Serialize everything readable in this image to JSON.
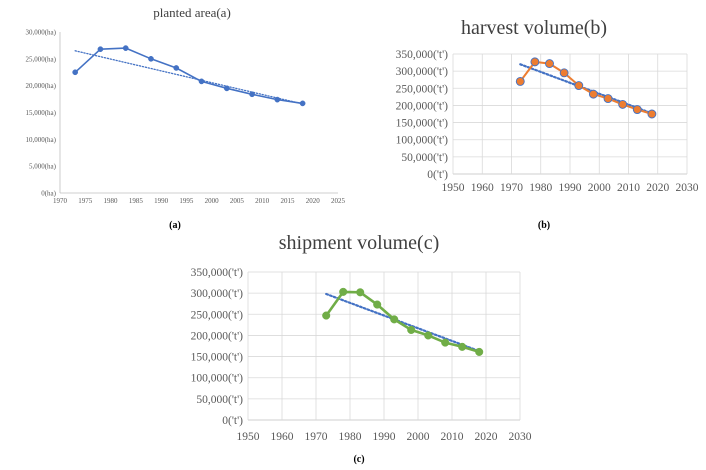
{
  "chart_data": [
    {
      "type": "line",
      "panel_label": "(a)",
      "title": "planted area(a)",
      "x": [
        1973,
        1978,
        1983,
        1988,
        1993,
        1998,
        2003,
        2008,
        2013,
        2018
      ],
      "series": [
        {
          "values": [
            22500,
            26800,
            27000,
            25000,
            23300,
            20800,
            19500,
            18400,
            17400,
            16700
          ],
          "color": "#4472C4",
          "marker": "circle-small"
        }
      ],
      "trendline": {
        "style": "dotted",
        "color": "#4472C4",
        "from": [
          1973,
          26500
        ],
        "to": [
          2018,
          16600
        ]
      },
      "xlim": [
        1970,
        2025
      ],
      "ylim": [
        0,
        30000
      ],
      "xticks": [
        "1970",
        "1975",
        "1980",
        "1985",
        "1990",
        "1995",
        "2000",
        "2005",
        "2010",
        "2015",
        "2020",
        "2025"
      ],
      "yticks": [
        "0(ha)",
        "5,000(ha)",
        "10,000(ha)",
        "15,000(ha)",
        "20,000(ha)",
        "25,000(ha)",
        "30,000(ha)"
      ],
      "grid": false
    },
    {
      "type": "line",
      "panel_label": "(b)",
      "title": "harvest volume(b)",
      "x": [
        1973,
        1978,
        1983,
        1988,
        1993,
        1998,
        2003,
        2008,
        2013,
        2018
      ],
      "series": [
        {
          "values": [
            270000,
            327000,
            322000,
            295000,
            258000,
            233000,
            220000,
            203000,
            188000,
            175000
          ],
          "color": "#ED7D31",
          "marker_fill": "#ED7D31",
          "marker_edge": "#4472C4"
        }
      ],
      "trendline": {
        "style": "dotted",
        "color": "#4472C4",
        "from": [
          1973,
          320000
        ],
        "to": [
          2018,
          177000
        ]
      },
      "xlim": [
        1950,
        2030
      ],
      "ylim": [
        0,
        350000
      ],
      "xticks": [
        "1950",
        "1960",
        "1970",
        "1980",
        "1990",
        "2000",
        "2010",
        "2020",
        "2030"
      ],
      "yticks": [
        "0('t')",
        "50,000('t')",
        "100,000('t')",
        "150,000('t')",
        "200,000('t')",
        "250,000('t')",
        "300,000('t')",
        "350,000('t')"
      ],
      "grid": true
    },
    {
      "type": "line",
      "panel_label": "(c)",
      "title": "shipment volume(c)",
      "x": [
        1973,
        1978,
        1983,
        1988,
        1993,
        1998,
        2003,
        2008,
        2013,
        2018
      ],
      "series": [
        {
          "values": [
            247000,
            303000,
            302000,
            273000,
            238000,
            213000,
            200000,
            183000,
            173000,
            161000
          ],
          "color": "#70AD47",
          "marker_fill": "#70AD47",
          "marker_edge": "#70AD47"
        }
      ],
      "trendline": {
        "style": "dotted",
        "color": "#4472C4",
        "from": [
          1973,
          298000
        ],
        "to": [
          2018,
          163000
        ]
      },
      "xlim": [
        1950,
        2030
      ],
      "ylim": [
        0,
        350000
      ],
      "xticks": [
        "1950",
        "1960",
        "1970",
        "1980",
        "1990",
        "2000",
        "2010",
        "2020",
        "2030"
      ],
      "yticks": [
        "0('t')",
        "50,000('t')",
        "100,000('t')",
        "150,000('t')",
        "200,000('t')",
        "250,000('t')",
        "300,000('t')",
        "350,000('t')"
      ],
      "grid": true
    }
  ]
}
